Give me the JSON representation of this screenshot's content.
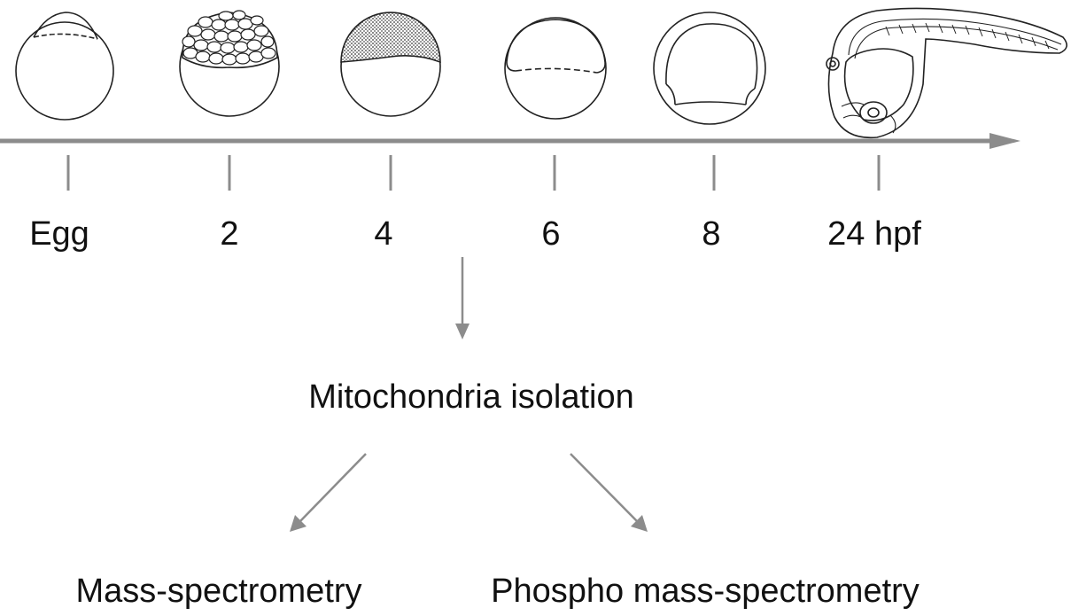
{
  "colors": {
    "line": "#8c8c8c",
    "embryo_stroke": "#222222",
    "text": "#111111"
  },
  "timeline": {
    "stages": [
      {
        "label": "Egg",
        "icon": "egg-zygote-icon"
      },
      {
        "label": "2",
        "icon": "embryo-cleavage-icon"
      },
      {
        "label": "4",
        "icon": "embryo-blastula-icon"
      },
      {
        "label": "6",
        "icon": "embryo-shield-icon"
      },
      {
        "label": "8",
        "icon": "embryo-epiboly-icon"
      },
      {
        "label": "24 hpf",
        "icon": "larva-24hpf-icon"
      }
    ]
  },
  "workflow": {
    "step1": "Mitochondria isolation",
    "branch_left": "Mass-spectrometry",
    "branch_right": "Phospho mass-spectrometry"
  }
}
